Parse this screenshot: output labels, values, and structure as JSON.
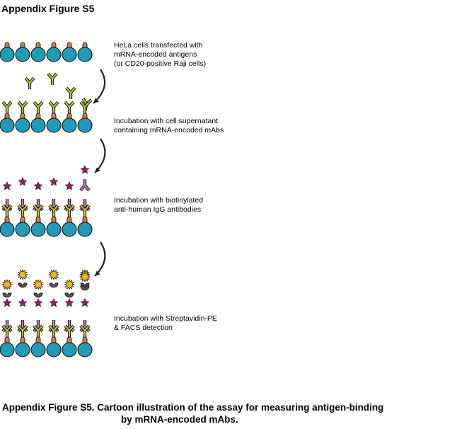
{
  "figure_title": "Appendix Figure S5",
  "colors": {
    "cell": "#1f9bb5",
    "antigen": "#e1773b",
    "mAb": "#b5c23a",
    "anti_igg": "#c07ab6",
    "biotin_star": "#9a1f6b",
    "streptavidin": "#555555",
    "pe_burst": "#f2b81a",
    "arrow": "#222222"
  },
  "steps": [
    {
      "lines": [
        "HeLa cells transfected with",
        "mRNA-encoded antigens",
        "(or CD20-positive Raji cells)"
      ]
    },
    {
      "lines": [
        "Incubation with cell supernatant",
        "containing mRNA-encoded mAbs"
      ]
    },
    {
      "lines": [
        "Incubation with biotinylated",
        "anti-human IgG antibodies"
      ]
    },
    {
      "lines": [
        "Incubation with Streptavidin-PE",
        "& FACS detection"
      ]
    }
  ],
  "caption": {
    "line1": "Appendix Figure S5. Cartoon illustration of the assay for measuring antigen-binding",
    "line2": "by mRNA-encoded mAbs."
  }
}
